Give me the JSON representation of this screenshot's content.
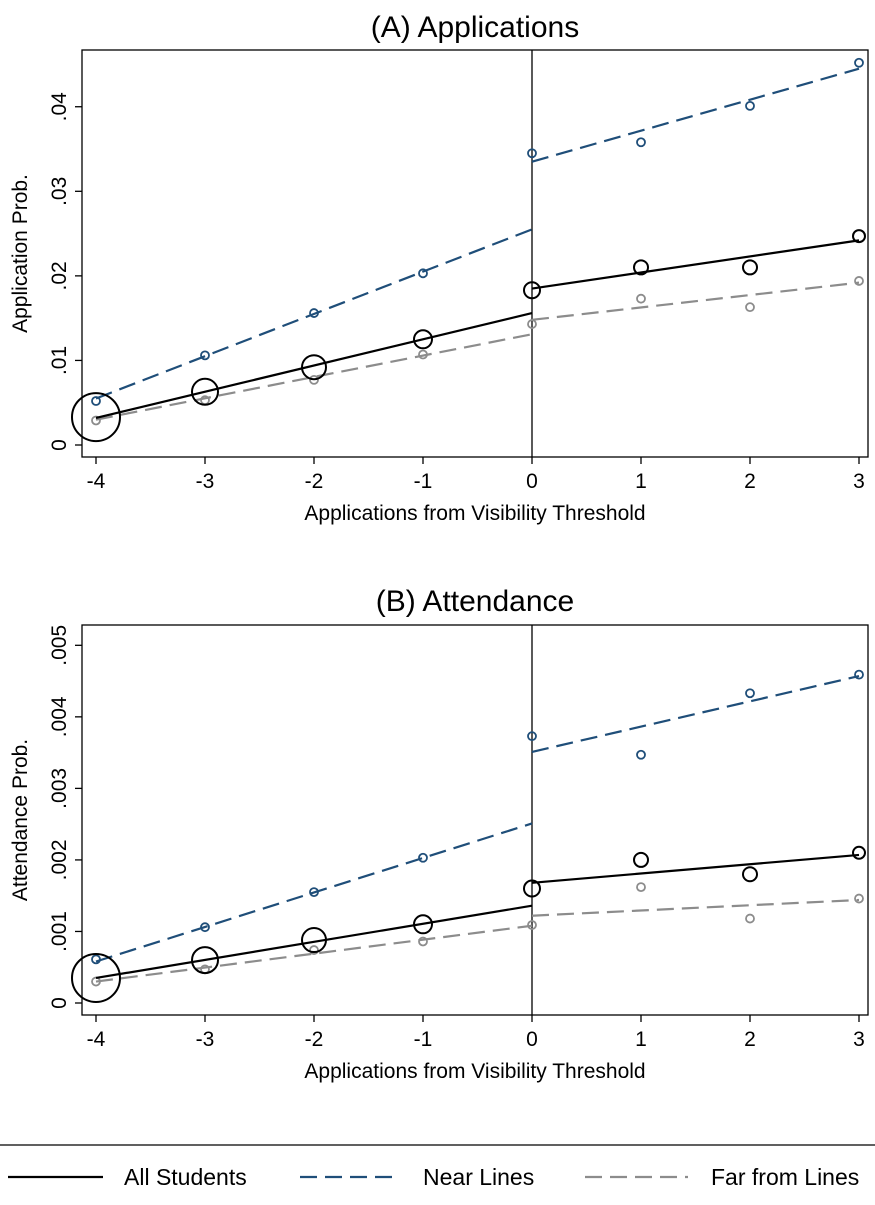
{
  "legend": {
    "items": [
      {
        "label": "All Students",
        "color": "#000000",
        "dash": "solid"
      },
      {
        "label": "Near Lines",
        "color": "#1f4e79",
        "dash": "dashed"
      },
      {
        "label": "Far from Lines",
        "color": "#8c8c8c",
        "dash": "dashed"
      }
    ]
  },
  "chart_data": [
    {
      "type": "scatter",
      "title": "(A) Applications",
      "xlabel": "Applications from Visibility Threshold",
      "ylabel": "Application Prob.",
      "xlim": [
        -4,
        3
      ],
      "ylim": [
        0,
        0.046
      ],
      "xticks": [
        -4,
        -3,
        -2,
        -1,
        0,
        1,
        2,
        3
      ],
      "xtick_labels": [
        "-4",
        "-3",
        "-2",
        "-1",
        "0",
        "1",
        "2",
        "3"
      ],
      "yticks": [
        0,
        0.01,
        0.02,
        0.03,
        0.04
      ],
      "ytick_labels": [
        "0",
        ".01",
        ".02",
        ".03",
        ".04"
      ],
      "threshold_x": 0,
      "series": [
        {
          "name": "All Students",
          "color": "#000000",
          "x": [
            -4,
            -3,
            -2,
            -1,
            0,
            1,
            2,
            3
          ],
          "y": [
            0.0033,
            0.0063,
            0.0092,
            0.0125,
            0.0183,
            0.021,
            0.021,
            0.0247
          ],
          "marker_size": [
            24,
            13,
            12,
            9,
            8,
            7,
            7,
            6
          ],
          "fit_left": [
            [
              -4,
              0.0032
            ],
            [
              0,
              0.0156
            ]
          ],
          "fit_right": [
            [
              0,
              0.0185
            ],
            [
              3,
              0.0242
            ]
          ]
        },
        {
          "name": "Near Lines",
          "color": "#1f4e79",
          "x": [
            -4,
            -3,
            -2,
            -1,
            0,
            1,
            2,
            3
          ],
          "y": [
            0.0052,
            0.0106,
            0.0156,
            0.0203,
            0.0345,
            0.0358,
            0.0401,
            0.0452
          ],
          "marker_size": [
            4,
            4,
            4,
            4,
            4,
            4,
            4,
            4
          ],
          "fit_left": [
            [
              -4,
              0.0055
            ],
            [
              0,
              0.0255
            ]
          ],
          "fit_right": [
            [
              0,
              0.0335
            ],
            [
              3,
              0.0445
            ]
          ]
        },
        {
          "name": "Far from Lines",
          "color": "#8c8c8c",
          "x": [
            -4,
            -3,
            -2,
            -1,
            0,
            1,
            2,
            3
          ],
          "y": [
            0.0029,
            0.0053,
            0.0077,
            0.0107,
            0.0143,
            0.0173,
            0.0163,
            0.0194
          ],
          "marker_size": [
            4,
            4,
            4,
            4,
            4,
            4,
            4,
            4
          ],
          "fit_left": [
            [
              -4,
              0.003
            ],
            [
              0,
              0.0131
            ]
          ],
          "fit_right": [
            [
              0,
              0.0148
            ],
            [
              3,
              0.0192
            ]
          ]
        }
      ]
    },
    {
      "type": "scatter",
      "title": "(B) Attendance",
      "xlabel": "Applications from Visibility Threshold",
      "ylabel": "Attendance Prob.",
      "xlim": [
        -4,
        3
      ],
      "ylim": [
        0,
        0.0052
      ],
      "xticks": [
        -4,
        -3,
        -2,
        -1,
        0,
        1,
        2,
        3
      ],
      "xtick_labels": [
        "-4",
        "-3",
        "-2",
        "-1",
        "0",
        "1",
        "2",
        "3"
      ],
      "yticks": [
        0,
        0.001,
        0.002,
        0.003,
        0.004,
        0.005
      ],
      "ytick_labels": [
        "0",
        ".001",
        ".002",
        ".003",
        ".004",
        ".005"
      ],
      "threshold_x": 0,
      "series": [
        {
          "name": "All Students",
          "color": "#000000",
          "x": [
            -4,
            -3,
            -2,
            -1,
            0,
            1,
            2,
            3
          ],
          "y": [
            0.00035,
            0.0006,
            0.00088,
            0.0011,
            0.0016,
            0.002,
            0.0018,
            0.0021
          ],
          "marker_size": [
            24,
            13,
            12,
            9,
            8,
            7,
            7,
            6
          ],
          "fit_left": [
            [
              -4,
              0.00035
            ],
            [
              0,
              0.00136
            ]
          ],
          "fit_right": [
            [
              0,
              0.00168
            ],
            [
              3,
              0.00207
            ]
          ]
        },
        {
          "name": "Near Lines",
          "color": "#1f4e79",
          "x": [
            -4,
            -3,
            -2,
            -1,
            0,
            1,
            2,
            3
          ],
          "y": [
            0.00061,
            0.00106,
            0.00155,
            0.00203,
            0.00373,
            0.00347,
            0.00433,
            0.00459
          ],
          "marker_size": [
            4,
            4,
            4,
            4,
            4,
            4,
            4,
            4
          ],
          "fit_left": [
            [
              -4,
              0.00058
            ],
            [
              0,
              0.00251
            ]
          ],
          "fit_right": [
            [
              0,
              0.00351
            ],
            [
              3,
              0.00457
            ]
          ]
        },
        {
          "name": "Far from Lines",
          "color": "#8c8c8c",
          "x": [
            -4,
            -3,
            -2,
            -1,
            0,
            1,
            2,
            3
          ],
          "y": [
            0.0003,
            0.00047,
            0.00074,
            0.00086,
            0.00109,
            0.00162,
            0.00118,
            0.00146
          ],
          "marker_size": [
            4,
            4,
            4,
            4,
            4,
            4,
            4,
            4
          ],
          "fit_left": [
            [
              -4,
              0.0003
            ],
            [
              0,
              0.00108
            ]
          ],
          "fit_right": [
            [
              0,
              0.00122
            ],
            [
              3,
              0.00144
            ]
          ]
        }
      ]
    }
  ]
}
